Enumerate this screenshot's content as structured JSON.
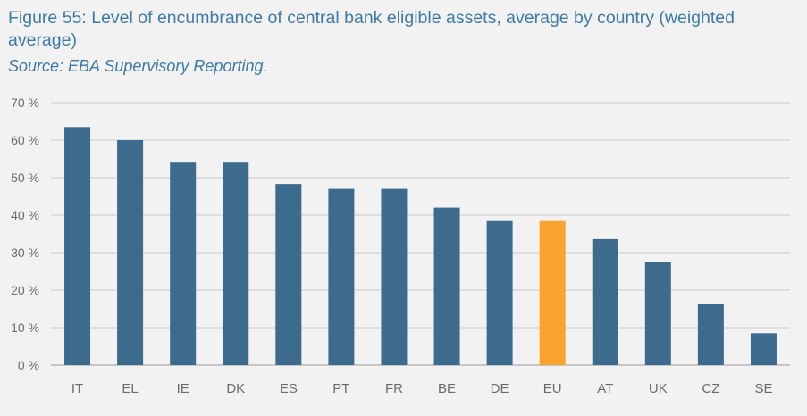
{
  "figure": {
    "label": "Figure 55:",
    "title": " Level of encumbrance of central bank eligible assets, average by country (weighted average)",
    "source": "Source: EBA Supervisory Reporting."
  },
  "colors": {
    "bar": "#3d6b8d",
    "highlight": "#f9a42e",
    "grid": "#c9c9c9",
    "text": "#3d7aa6"
  },
  "chart_data": {
    "type": "bar",
    "categories": [
      "IT",
      "EL",
      "IE",
      "DK",
      "ES",
      "PT",
      "FR",
      "BE",
      "DE",
      "EU",
      "AT",
      "UK",
      "CZ",
      "SE"
    ],
    "values": [
      63.5,
      60,
      54,
      54,
      48.3,
      47,
      47,
      42,
      38.4,
      38.4,
      33.6,
      27.5,
      16.3,
      8.5
    ],
    "highlight_category": "EU",
    "yticks": [
      "0 %",
      "10 %",
      "20 %",
      "30 %",
      "40 %",
      "50 %",
      "60 %",
      "70 %"
    ],
    "ylim": [
      0,
      70
    ],
    "grid": true,
    "legend": "none"
  }
}
